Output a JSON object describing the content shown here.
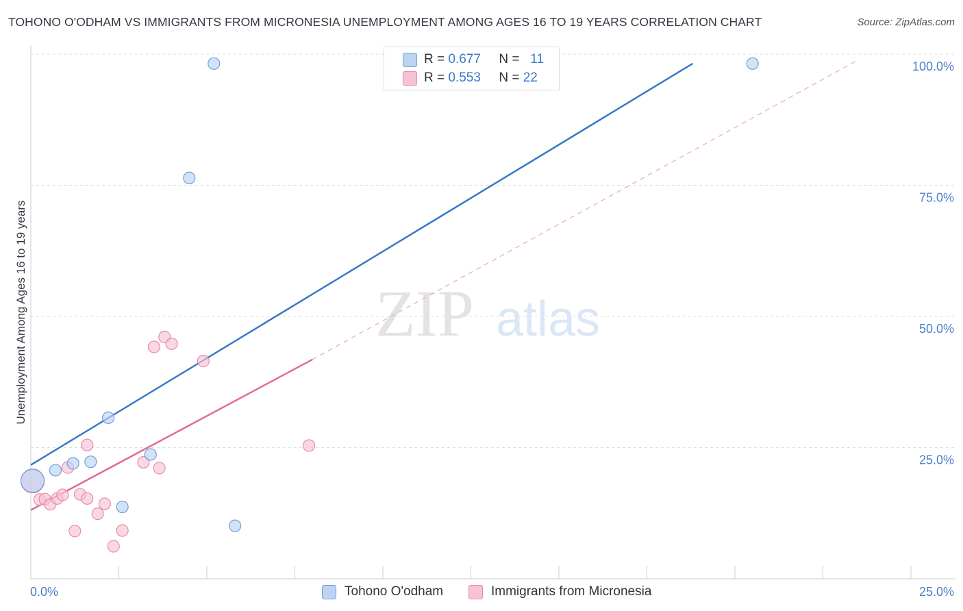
{
  "header": {
    "title": "TOHONO O'ODHAM VS IMMIGRANTS FROM MICRONESIA UNEMPLOYMENT AMONG AGES 16 TO 19 YEARS CORRELATION CHART",
    "source": "Source: ZipAtlas.com"
  },
  "watermark": {
    "zip": "ZIP",
    "atlas": "atlas"
  },
  "legend": {
    "r_label": "R =",
    "n_label": "N =",
    "rows": [
      {
        "r": "0.677",
        "n": "11",
        "color": "#aecbf0"
      },
      {
        "r": "0.553",
        "n": "22",
        "color": "#f7bcd0"
      }
    ]
  },
  "colors": {
    "blue": "#3a78c8",
    "blue_fill": "#bcd4f2",
    "pink": "#e26a92",
    "pink_fill": "#f7c3d4",
    "grid": "#dddddd",
    "tick_text": "#4a7ec7"
  },
  "chart_data": {
    "type": "scatter",
    "title": "TOHONO O'ODHAM VS IMMIGRANTS FROM MICRONESIA UNEMPLOYMENT AMONG AGES 16 TO 19 YEARS CORRELATION CHART",
    "xlabel": "",
    "ylabel": "Unemployment Among Ages 16 to 19 years",
    "xlim": [
      0,
      25
    ],
    "ylim": [
      0,
      100
    ],
    "x_tick_labels": [
      "0.0%",
      "25.0%"
    ],
    "y_tick_values": [
      25,
      50,
      75,
      100
    ],
    "y_tick_labels": [
      "25.0%",
      "50.0%",
      "75.0%",
      "100.0%"
    ],
    "series": [
      {
        "name": "Tohono O'odham",
        "r": 0.677,
        "n": 11,
        "points": [
          {
            "x": 0.05,
            "y": 18.7,
            "big": true
          },
          {
            "x": 0.7,
            "y": 20.7
          },
          {
            "x": 1.2,
            "y": 22.0
          },
          {
            "x": 1.7,
            "y": 22.3
          },
          {
            "x": 2.2,
            "y": 30.7
          },
          {
            "x": 2.6,
            "y": 13.7
          },
          {
            "x": 3.4,
            "y": 23.7
          },
          {
            "x": 4.5,
            "y": 76.4
          },
          {
            "x": 5.2,
            "y": 98.2
          },
          {
            "x": 5.8,
            "y": 10.1
          },
          {
            "x": 20.5,
            "y": 98.2
          }
        ],
        "trend": {
          "x": [
            0,
            18.8
          ],
          "y": [
            21.7,
            98.2
          ]
        }
      },
      {
        "name": "Immigrants from Micronesia",
        "r": 0.553,
        "n": 22,
        "points": [
          {
            "x": 0.05,
            "y": 18.6,
            "big": true
          },
          {
            "x": 0.25,
            "y": 15.1
          },
          {
            "x": 0.4,
            "y": 15.2
          },
          {
            "x": 0.55,
            "y": 14.2
          },
          {
            "x": 0.75,
            "y": 15.3
          },
          {
            "x": 0.9,
            "y": 16.0
          },
          {
            "x": 1.05,
            "y": 21.2
          },
          {
            "x": 1.25,
            "y": 9.1
          },
          {
            "x": 1.4,
            "y": 16.1
          },
          {
            "x": 1.6,
            "y": 15.3
          },
          {
            "x": 1.6,
            "y": 25.5
          },
          {
            "x": 1.9,
            "y": 12.4
          },
          {
            "x": 2.1,
            "y": 14.3
          },
          {
            "x": 2.35,
            "y": 6.2
          },
          {
            "x": 2.6,
            "y": 9.2
          },
          {
            "x": 3.2,
            "y": 22.2
          },
          {
            "x": 3.5,
            "y": 44.2
          },
          {
            "x": 3.65,
            "y": 21.1
          },
          {
            "x": 3.8,
            "y": 46.1
          },
          {
            "x": 4.0,
            "y": 44.8
          },
          {
            "x": 4.9,
            "y": 41.5
          },
          {
            "x": 7.9,
            "y": 25.4
          }
        ],
        "trend": {
          "x": [
            0,
            8.0
          ],
          "y": [
            13.1,
            41.8
          ]
        },
        "trend_ext": {
          "x": [
            8.0,
            23.5
          ],
          "y": [
            41.8,
            98.9
          ]
        }
      }
    ]
  }
}
